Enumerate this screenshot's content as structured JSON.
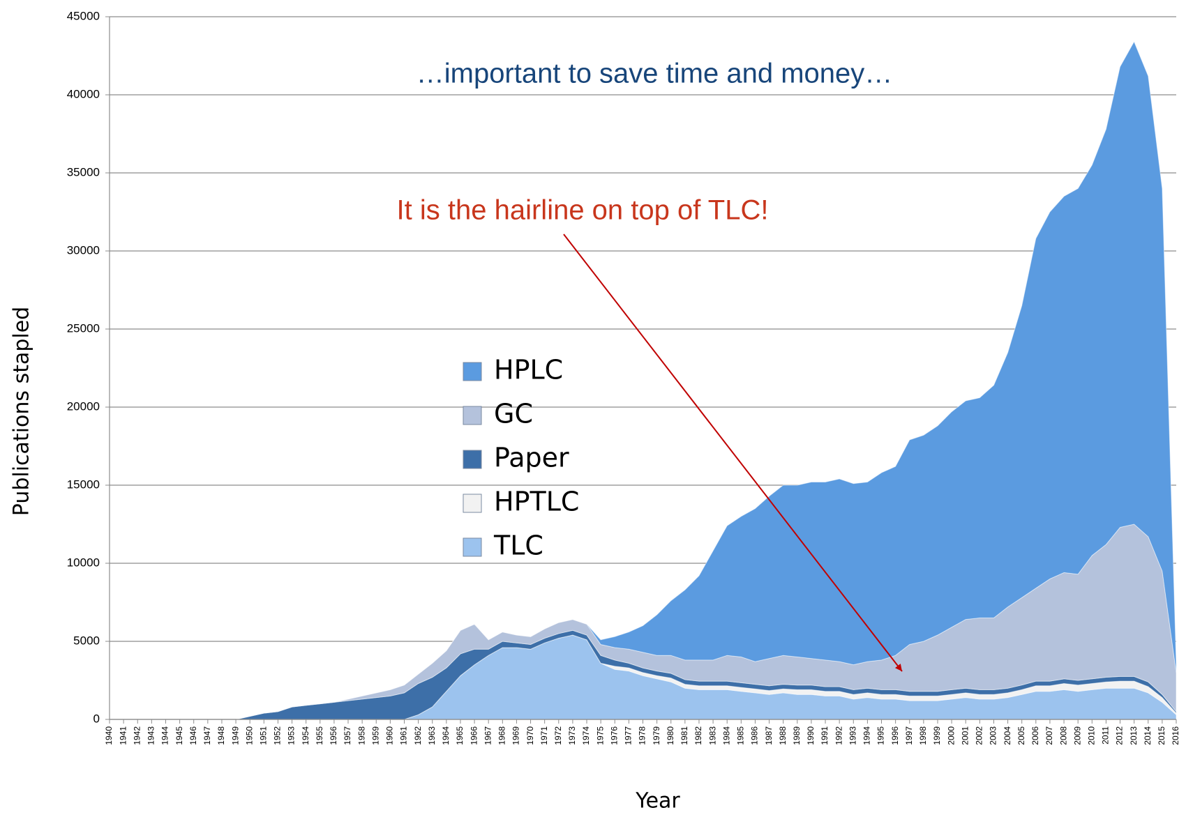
{
  "chart_data": {
    "type": "stacked_area",
    "annotations": [
      "…important to save time and money…",
      "It is the hairline on top of TLC!"
    ],
    "ylabel": "Publications stapled",
    "xlabel": "Year",
    "categories": [
      "1940",
      "1941",
      "1942",
      "1943",
      "1944",
      "1945",
      "1946",
      "1947",
      "1948",
      "1949",
      "1950",
      "1951",
      "1952",
      "1953",
      "1954",
      "1955",
      "1956",
      "1957",
      "1958",
      "1959",
      "1960",
      "1961",
      "1962",
      "1963",
      "1964",
      "1965",
      "1966",
      "1967",
      "1968",
      "1969",
      "1970",
      "1971",
      "1972",
      "1973",
      "1974",
      "1975",
      "1976",
      "1977",
      "1978",
      "1979",
      "1980",
      "1981",
      "1982",
      "1983",
      "1984",
      "1985",
      "1986",
      "1987",
      "1988",
      "1989",
      "1990",
      "1991",
      "1992",
      "1993",
      "1994",
      "1995",
      "1996",
      "1997",
      "1998",
      "1999",
      "2000",
      "2001",
      "2002",
      "2003",
      "2004",
      "2005",
      "2006",
      "2007",
      "2008",
      "2009",
      "2010",
      "2011",
      "2012",
      "2013",
      "2014",
      "2015",
      "2016"
    ],
    "series": [
      {
        "name": "TLC",
        "color": "#9cc3ee",
        "values": [
          0,
          0,
          0,
          0,
          0,
          0,
          0,
          0,
          0,
          0,
          0,
          0,
          0,
          0,
          0,
          0,
          0,
          0,
          0,
          0,
          0,
          0,
          300,
          800,
          1800,
          2800,
          3500,
          4100,
          4600,
          4600,
          4500,
          4900,
          5200,
          5400,
          5100,
          3600,
          3200,
          3100,
          2800,
          2600,
          2400,
          2000,
          1900,
          1900,
          1900,
          1800,
          1700,
          1600,
          1700,
          1600,
          1600,
          1500,
          1500,
          1300,
          1400,
          1300,
          1300,
          1200,
          1200,
          1200,
          1300,
          1400,
          1300,
          1300,
          1400,
          1600,
          1800,
          1800,
          1900,
          1800,
          1900,
          2000,
          2000,
          2000,
          1700,
          1100,
          300
        ]
      },
      {
        "name": "HPTLC",
        "color": "#f2f2f2",
        "values": [
          0,
          0,
          0,
          0,
          0,
          0,
          0,
          0,
          0,
          0,
          0,
          0,
          0,
          0,
          0,
          0,
          0,
          0,
          0,
          0,
          0,
          0,
          0,
          0,
          0,
          0,
          0,
          0,
          0,
          0,
          0,
          0,
          0,
          0,
          0,
          0,
          200,
          200,
          200,
          200,
          250,
          250,
          250,
          250,
          250,
          250,
          250,
          250,
          250,
          300,
          300,
          300,
          300,
          300,
          300,
          300,
          300,
          300,
          300,
          300,
          300,
          300,
          300,
          300,
          300,
          300,
          350,
          350,
          400,
          400,
          400,
          400,
          450,
          450,
          400,
          300,
          100
        ]
      },
      {
        "name": "Paper",
        "color": "#3d6fa8",
        "values": [
          0,
          0,
          0,
          0,
          0,
          0,
          0,
          0,
          0,
          0,
          200,
          400,
          500,
          800,
          900,
          1000,
          1100,
          1200,
          1300,
          1400,
          1500,
          1700,
          2000,
          1900,
          1500,
          1400,
          1000,
          400,
          400,
          300,
          300,
          300,
          300,
          300,
          300,
          500,
          400,
          300,
          300,
          300,
          300,
          300,
          300,
          300,
          300,
          300,
          300,
          300,
          300,
          300,
          300,
          300,
          300,
          300,
          300,
          300,
          300,
          300,
          300,
          300,
          300,
          300,
          300,
          300,
          300,
          300,
          300,
          300,
          300,
          300,
          300,
          300,
          300,
          300,
          300,
          200,
          100
        ]
      },
      {
        "name": "GC",
        "color": "#b4c2dc",
        "values": [
          0,
          0,
          0,
          0,
          0,
          0,
          0,
          0,
          0,
          0,
          0,
          0,
          0,
          0,
          0,
          0,
          0,
          100,
          200,
          300,
          400,
          500,
          600,
          900,
          1100,
          1500,
          1600,
          600,
          600,
          500,
          500,
          600,
          700,
          700,
          700,
          700,
          800,
          900,
          1000,
          1000,
          1150,
          1250,
          1350,
          1350,
          1650,
          1650,
          1450,
          1750,
          1850,
          1800,
          1700,
          1700,
          1600,
          1600,
          1700,
          1900,
          2200,
          3000,
          3200,
          3600,
          4000,
          4400,
          4600,
          4600,
          5200,
          5600,
          5950,
          6550,
          6800,
          6800,
          7900,
          8500,
          9550,
          9750,
          9300,
          7900,
          2500
        ]
      },
      {
        "name": "HPLC",
        "color": "#5b9be0",
        "values": [
          0,
          0,
          0,
          0,
          0,
          0,
          0,
          0,
          0,
          0,
          0,
          0,
          0,
          0,
          0,
          0,
          0,
          0,
          0,
          0,
          0,
          0,
          0,
          0,
          0,
          0,
          0,
          0,
          0,
          0,
          0,
          0,
          0,
          0,
          0,
          300,
          700,
          1100,
          1700,
          2600,
          3500,
          4500,
          5400,
          7000,
          8300,
          9000,
          9800,
          10400,
          10900,
          11000,
          11300,
          11400,
          11700,
          11600,
          11500,
          12000,
          12100,
          13100,
          13200,
          13400,
          13800,
          14000,
          14100,
          14900,
          16300,
          18700,
          22400,
          23500,
          24100,
          24700,
          25000,
          26600,
          29500,
          30900,
          29500,
          24500,
          600
        ]
      }
    ],
    "ylim": [
      0,
      45000
    ],
    "yticks": [
      0,
      5000,
      10000,
      15000,
      20000,
      25000,
      30000,
      35000,
      40000,
      45000
    ],
    "grid": true
  }
}
